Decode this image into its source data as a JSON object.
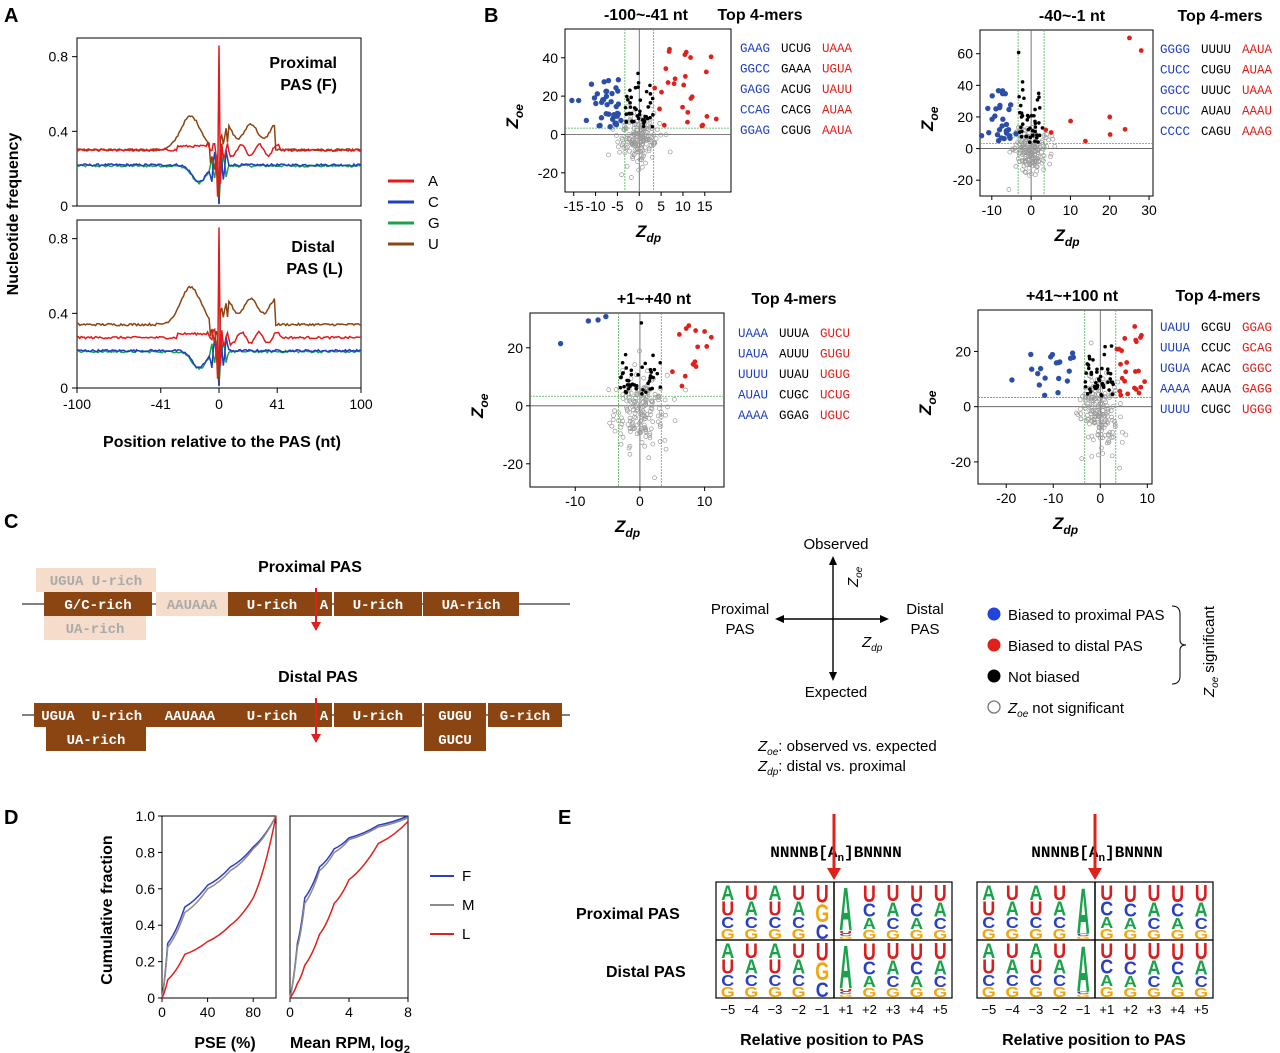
{
  "colors": {
    "A": "#e31a1c",
    "C": "#1f3fbf",
    "G": "#1aa34a",
    "U": "#8b4513",
    "blue": "#2b4fa8",
    "red": "#e0201b",
    "black": "#000000",
    "gray": "#9a9a9a",
    "box": "#8b4513",
    "boxFaded": "#f5dccb",
    "F": "#2b3fbf",
    "M": "#8c8c8c",
    "L": "#e0201b"
  },
  "panels": {
    "A": "A",
    "B": "B",
    "C": "C",
    "D": "D",
    "E": "E"
  },
  "panelA": {
    "ylabel": "Nucleotide frequency",
    "xlabel": "Position relative to the PAS (nt)",
    "xticks": [
      "-100",
      "-41",
      "0",
      "41",
      "100"
    ],
    "yticks": [
      "0",
      "0.4",
      "0.8"
    ],
    "top_title": [
      "Proximal",
      "PAS (F)"
    ],
    "bottom_title": [
      "Distal",
      "PAS (L)"
    ],
    "legend": [
      "A",
      "C",
      "G",
      "U"
    ]
  },
  "panelB": {
    "top4mers": "Top 4-mers",
    "xlabel": "Z",
    "xlabel_sub": "dp",
    "ylabel": "Z",
    "ylabel_sub": "oe",
    "plots": [
      {
        "title": "-100~-41 nt",
        "xticks": [
          "-15",
          "-10",
          "-5",
          "0",
          "5",
          "10",
          "15"
        ],
        "yticks": [
          "-20",
          "0",
          "20",
          "40"
        ],
        "xlim": [
          -17,
          21
        ],
        "ylim": [
          -30,
          55
        ],
        "kmers": [
          [
            "GAAG",
            "UCUG",
            "UAAA"
          ],
          [
            "GGCC",
            "GAAA",
            "UGUA"
          ],
          [
            "GAGG",
            "ACUG",
            "UAUU"
          ],
          [
            "CCAG",
            "CACG",
            "AUAA"
          ],
          [
            "GGAG",
            "CGUG",
            "AAUA"
          ]
        ]
      },
      {
        "title": "-40~-1 nt",
        "xticks": [
          "-10",
          "0",
          "10",
          "20",
          "30"
        ],
        "yticks": [
          "-20",
          "0",
          "20",
          "40",
          "60"
        ],
        "xlim": [
          -13,
          31
        ],
        "ylim": [
          -30,
          75
        ],
        "kmers": [
          [
            "GGGG",
            "UUUU",
            "AAUA"
          ],
          [
            "CUCC",
            "CUGU",
            "AUAA"
          ],
          [
            "GGCC",
            "UUUC",
            "UAAA"
          ],
          [
            "CCUC",
            "AUAU",
            "AAAU"
          ],
          [
            "CCCC",
            "CAGU",
            "AAAG"
          ]
        ]
      },
      {
        "title": "+1~+40 nt",
        "xticks": [
          "-10",
          "0",
          "10"
        ],
        "yticks": [
          "-20",
          "0",
          "20"
        ],
        "xlim": [
          -17,
          13
        ],
        "ylim": [
          -28,
          32
        ],
        "kmers": [
          [
            "UAAA",
            "UUUA",
            "GUCU"
          ],
          [
            "UAUA",
            "AUUU",
            "GUGU"
          ],
          [
            "UUUU",
            "UUAU",
            "UGUG"
          ],
          [
            "AUAU",
            "CUGC",
            "UCUG"
          ],
          [
            "AAAA",
            "GGAG",
            "UGUC"
          ]
        ]
      },
      {
        "title": "+41~+100 nt",
        "xticks": [
          "-20",
          "-10",
          "0",
          "10"
        ],
        "yticks": [
          "-20",
          "0",
          "20"
        ],
        "xlim": [
          -26,
          11
        ],
        "ylim": [
          -28,
          35
        ],
        "kmers": [
          [
            "UAUU",
            "GCGU",
            "GGAG"
          ],
          [
            "UUUA",
            "CCUC",
            "GCAG"
          ],
          [
            "UGUA",
            "ACAC",
            "GGGC"
          ],
          [
            "AAAA",
            "AAUA",
            "GAGG"
          ],
          [
            "UUUU",
            "CUGC",
            "UGGG"
          ]
        ]
      }
    ]
  },
  "panelC": {
    "proximal_title": "Proximal PAS",
    "distal_title": "Distal PAS",
    "prox_faded_top": [
      "UGUA",
      "U-rich"
    ],
    "prox_faded_bottom": "UA-rich",
    "prox_faded_mid": "AAUAAA",
    "prox_boxes": [
      "G/C-rich",
      "U-rich",
      "A",
      "U-rich",
      "UA-rich"
    ],
    "dist_boxes": [
      "UGUA",
      "U-rich",
      "AAUAAA",
      "U-rich",
      "A",
      "U-rich",
      "GUGU",
      "G-rich"
    ],
    "dist_below": [
      "UA-rich",
      "GUCU"
    ],
    "axes": {
      "up": "Observed",
      "down": "Expected",
      "left": [
        "Proximal",
        "PAS"
      ],
      "right": [
        "Distal",
        "PAS"
      ],
      "zoe": "Z",
      "zoe_sub": "oe",
      "zdp": "Z",
      "zdp_sub": "dp"
    },
    "legend": [
      "Biased to proximal PAS",
      "Biased to distal PAS",
      "Not biased",
      "not significant"
    ],
    "legend_z": "Z",
    "legend_z_sub": "oe",
    "sig_label": "significant",
    "notes": [
      {
        "z": "Z",
        "sub": "oe",
        "text": ": observed vs. expected"
      },
      {
        "z": "Z",
        "sub": "dp",
        "text": ": distal vs. proximal"
      }
    ]
  },
  "panelD": {
    "ylabel": "Cumulative fraction",
    "yticks": [
      "0",
      "0.2",
      "0.4",
      "0.6",
      "0.8",
      "1.0"
    ],
    "left_xticks": [
      "0",
      "40",
      "80"
    ],
    "right_xticks": [
      "0",
      "4",
      "8"
    ],
    "left_xlabel": "PSE (%)",
    "right_xlabel": "Mean RPM, log",
    "right_xlabel_sub": "2",
    "legend": [
      "F",
      "M",
      "L"
    ]
  },
  "panelE": {
    "motif": [
      "NNNNB",
      "[",
      "A",
      "n",
      "]",
      "BNNNN"
    ],
    "rows": [
      "Proximal PAS",
      "Distal PAS"
    ],
    "positions": [
      "−5",
      "−4",
      "−3",
      "−2",
      "−1",
      "+1",
      "+2",
      "+3",
      "+4",
      "+5"
    ],
    "xlabel": "Relative position to PAS"
  },
  "chart_data": [
    {
      "type": "line",
      "panel": "A-top",
      "title": "Proximal PAS (F)",
      "xlim": [
        -100,
        100
      ],
      "ylim": [
        0,
        0.9
      ],
      "series": [
        {
          "name": "A",
          "values": "baseline~0.28 rising to ~0.42 near 0; spike 0.85 at 0"
        },
        {
          "name": "U",
          "values": "~0.30 upstream, peak ~0.48 at -20, ~0.40 downstream 0-30, ~0.28 beyond"
        },
        {
          "name": "C",
          "values": "~0.22 flat, dip ~0.10 near -15"
        },
        {
          "name": "G",
          "values": "~0.22 flat, dip near -15"
        }
      ]
    },
    {
      "type": "line",
      "panel": "A-bottom",
      "title": "Distal PAS (L)",
      "xlim": [
        -100,
        100
      ],
      "ylim": [
        0,
        0.9
      ],
      "series": [
        {
          "name": "A",
          "values": "~0.26 baseline, spike 0.85 at 0"
        },
        {
          "name": "U",
          "values": "~0.34 upstream, peak ~0.55 at -20"
        },
        {
          "name": "C",
          "values": "~0.20, dip near -15"
        },
        {
          "name": "G",
          "values": "~0.19, dip near -15"
        }
      ]
    },
    {
      "type": "scatter",
      "panel": "B",
      "series": [
        {
          "name": "Biased to proximal PAS"
        },
        {
          "name": "Biased to distal PAS"
        },
        {
          "name": "Not biased"
        }
      ]
    },
    {
      "type": "line",
      "panel": "D-left",
      "xlabel": "PSE (%)",
      "xlim": [
        0,
        100
      ],
      "ylim": [
        0,
        1
      ],
      "series": [
        {
          "name": "F",
          "x": [
            0,
            5,
            20,
            40,
            60,
            80,
            100
          ],
          "y": [
            0,
            0.3,
            0.5,
            0.62,
            0.72,
            0.83,
            1
          ]
        },
        {
          "name": "M",
          "x": [
            0,
            5,
            20,
            40,
            60,
            80,
            100
          ],
          "y": [
            0,
            0.28,
            0.47,
            0.6,
            0.7,
            0.82,
            1
          ]
        },
        {
          "name": "L",
          "x": [
            0,
            5,
            20,
            40,
            60,
            80,
            100
          ],
          "y": [
            0,
            0.1,
            0.24,
            0.31,
            0.4,
            0.55,
            1
          ]
        }
      ]
    },
    {
      "type": "line",
      "panel": "D-right",
      "xlabel": "Mean RPM, log2",
      "xlim": [
        0,
        8
      ],
      "ylim": [
        0,
        1
      ],
      "series": [
        {
          "name": "F",
          "x": [
            0,
            0.5,
            1,
            2,
            3,
            4,
            6,
            8
          ],
          "y": [
            0,
            0.3,
            0.55,
            0.72,
            0.82,
            0.88,
            0.95,
            1
          ]
        },
        {
          "name": "M",
          "x": [
            0,
            0.5,
            1,
            2,
            3,
            4,
            6,
            8
          ],
          "y": [
            0,
            0.28,
            0.52,
            0.7,
            0.8,
            0.87,
            0.94,
            0.99
          ]
        },
        {
          "name": "L",
          "x": [
            0,
            0.5,
            1,
            2,
            3,
            4,
            6,
            8
          ],
          "y": [
            0,
            0.08,
            0.18,
            0.35,
            0.52,
            0.65,
            0.85,
            0.97
          ]
        }
      ]
    }
  ]
}
